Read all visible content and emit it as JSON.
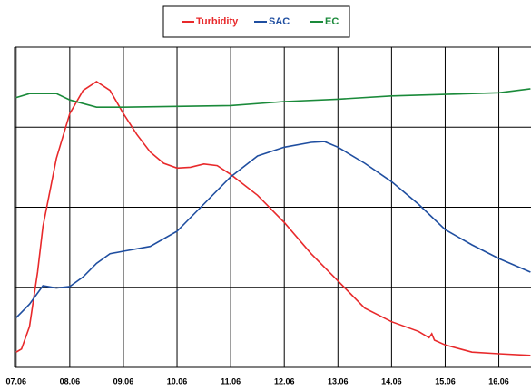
{
  "chart_data": {
    "type": "line",
    "xlim": [
      6.97,
      16.6
    ],
    "xticks": [
      {
        "value": 7,
        "label": "07.06"
      },
      {
        "value": 8,
        "label": "08.06"
      },
      {
        "value": 9,
        "label": "09.06"
      },
      {
        "value": 10,
        "label": "10.06"
      },
      {
        "value": 11,
        "label": "11.06"
      },
      {
        "value": 12,
        "label": "12.06"
      },
      {
        "value": 13,
        "label": "13.06"
      },
      {
        "value": 14,
        "label": "14.06"
      },
      {
        "value": 15,
        "label": "15.06"
      },
      {
        "value": 16,
        "label": "16.06"
      }
    ],
    "ylim": [
      0,
      4
    ],
    "yticks": [
      0,
      1,
      2,
      3,
      4
    ],
    "grid": true,
    "series": [
      {
        "name": "Turbidity",
        "color": "#e8292b",
        "x": [
          7.0,
          7.1,
          7.25,
          7.4,
          7.5,
          7.75,
          8.0,
          8.25,
          8.5,
          8.75,
          9.0,
          9.25,
          9.5,
          9.75,
          10.0,
          10.25,
          10.5,
          10.75,
          11.0,
          11.5,
          12.0,
          12.5,
          13.0,
          13.5,
          14.0,
          14.5,
          14.7,
          14.75,
          14.8,
          15.0,
          15.5,
          16.0,
          16.59
        ],
        "values": [
          0.19,
          0.23,
          0.51,
          1.19,
          1.76,
          2.61,
          3.17,
          3.46,
          3.57,
          3.46,
          3.17,
          2.91,
          2.69,
          2.55,
          2.49,
          2.5,
          2.54,
          2.52,
          2.41,
          2.15,
          1.81,
          1.42,
          1.08,
          0.74,
          0.57,
          0.45,
          0.37,
          0.42,
          0.34,
          0.28,
          0.19,
          0.17,
          0.15
        ]
      },
      {
        "name": "SAC",
        "color": "#1f4ea0",
        "x": [
          7.0,
          7.25,
          7.5,
          7.75,
          8.0,
          8.25,
          8.5,
          8.75,
          9.0,
          9.5,
          10.0,
          10.5,
          11.0,
          11.5,
          12.0,
          12.5,
          12.75,
          13.0,
          13.5,
          14.0,
          14.5,
          15.0,
          15.5,
          16.0,
          16.59
        ],
        "values": [
          0.62,
          0.79,
          1.02,
          0.99,
          1.01,
          1.13,
          1.3,
          1.42,
          1.45,
          1.51,
          1.7,
          2.04,
          2.38,
          2.64,
          2.75,
          2.81,
          2.82,
          2.75,
          2.55,
          2.32,
          2.04,
          1.72,
          1.53,
          1.36,
          1.19
        ]
      },
      {
        "name": "EC",
        "color": "#1a8a3a",
        "x": [
          7.0,
          7.25,
          7.75,
          8.0,
          8.5,
          9.0,
          10.0,
          11.0,
          12.0,
          13.0,
          14.0,
          15.0,
          16.0,
          16.59
        ],
        "values": [
          3.37,
          3.42,
          3.42,
          3.34,
          3.25,
          3.25,
          3.26,
          3.27,
          3.32,
          3.35,
          3.39,
          3.41,
          3.43,
          3.48
        ]
      }
    ]
  }
}
